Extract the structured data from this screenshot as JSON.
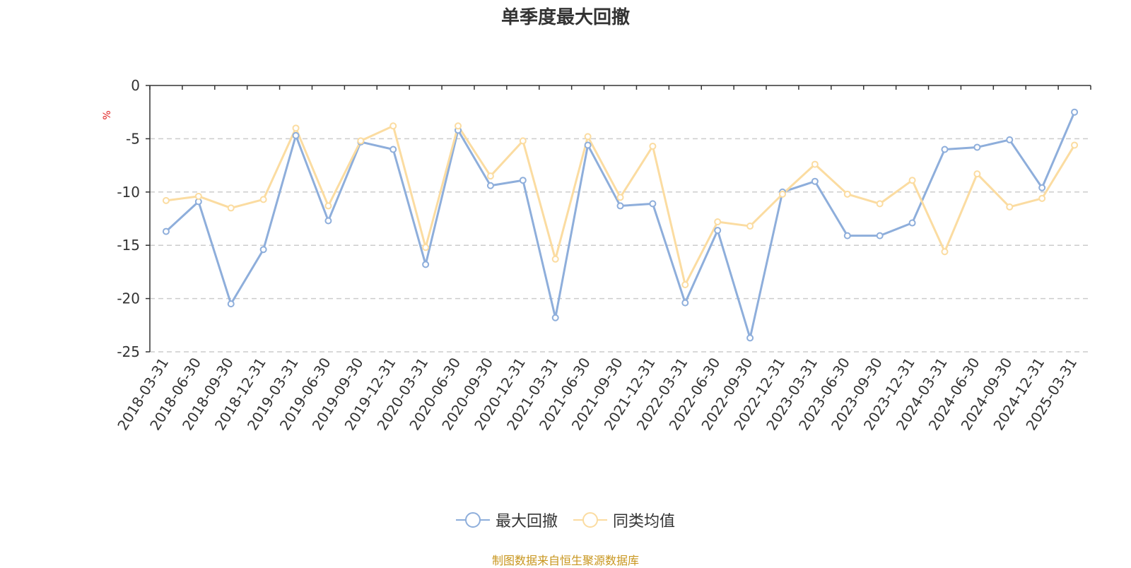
{
  "chart_data": {
    "type": "line",
    "title": "单季度最大回撤",
    "ylabel": "%",
    "ylim": [
      -25,
      0
    ],
    "yticks": [
      0,
      -5,
      -10,
      -15,
      -20,
      -25
    ],
    "categories": [
      "2018-03-31",
      "2018-06-30",
      "2018-09-30",
      "2018-12-31",
      "2019-03-31",
      "2019-06-30",
      "2019-09-30",
      "2019-12-31",
      "2020-03-31",
      "2020-06-30",
      "2020-09-30",
      "2020-12-31",
      "2021-03-31",
      "2021-06-30",
      "2021-09-30",
      "2021-12-31",
      "2022-03-31",
      "2022-06-30",
      "2022-09-30",
      "2022-12-31",
      "2023-03-31",
      "2023-06-30",
      "2023-09-30",
      "2023-12-31",
      "2024-03-31",
      "2024-06-30",
      "2024-09-30",
      "2024-12-31",
      "2025-03-31"
    ],
    "series": [
      {
        "name": "最大回撤",
        "color": "#8eaedb",
        "values": [
          -13.7,
          -10.9,
          -20.5,
          -15.4,
          -4.7,
          -12.7,
          -5.3,
          -6.0,
          -16.8,
          -4.2,
          -9.4,
          -8.9,
          -21.8,
          -5.6,
          -11.3,
          -11.1,
          -20.4,
          -13.6,
          -23.7,
          -10.0,
          -9.0,
          -14.1,
          -14.1,
          -12.9,
          -6.0,
          -5.8,
          -5.1,
          -9.6,
          -2.5
        ]
      },
      {
        "name": "同类均值",
        "color": "#fbdca1",
        "values": [
          -10.8,
          -10.4,
          -11.5,
          -10.7,
          -4.0,
          -11.3,
          -5.2,
          -3.8,
          -15.2,
          -3.8,
          -8.5,
          -5.2,
          -16.3,
          -4.8,
          -10.5,
          -5.7,
          -18.7,
          -12.8,
          -13.2,
          -10.2,
          -7.4,
          -10.2,
          -11.1,
          -8.9,
          -15.6,
          -8.3,
          -11.4,
          -10.6,
          -5.6
        ]
      }
    ],
    "grid": true,
    "legend_position": "bottom",
    "source_note": "制图数据来自恒生聚源数据库"
  }
}
